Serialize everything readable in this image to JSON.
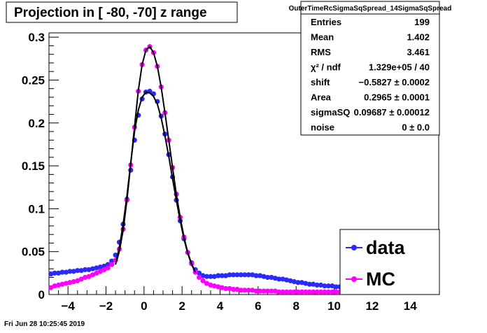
{
  "chart_data": {
    "type": "scatter",
    "title": "Projection in [ -80, -70] z range",
    "xlabel": "",
    "ylabel": "",
    "xlim": [
      -5,
      15.5
    ],
    "ylim": [
      0,
      0.305
    ],
    "x_ticks": [
      -4,
      -2,
      0,
      2,
      4,
      6,
      8,
      10,
      12,
      14
    ],
    "x_tick_labels": [
      "−4",
      "−2",
      "0",
      "2",
      "4",
      "6",
      "8",
      "10",
      "12",
      "14"
    ],
    "y_ticks": [
      0,
      0.05,
      0.1,
      0.15,
      0.2,
      0.25,
      0.3
    ],
    "y_tick_labels": [
      "0",
      "0.05",
      "0.1",
      "0.15",
      "0.2",
      "0.25",
      "0.3"
    ],
    "grid": false,
    "legend_position": "bottom-right",
    "series": [
      {
        "name": "data",
        "color": "#2a2aff",
        "marker": "circle",
        "x": [
          -4.9,
          -4.7,
          -4.5,
          -4.3,
          -4.1,
          -3.9,
          -3.7,
          -3.5,
          -3.3,
          -3.1,
          -2.9,
          -2.7,
          -2.5,
          -2.3,
          -2.1,
          -1.9,
          -1.7,
          -1.5,
          -1.3,
          -1.1,
          -0.9,
          -0.7,
          -0.5,
          -0.3,
          -0.1,
          0.1,
          0.3,
          0.5,
          0.7,
          0.9,
          1.1,
          1.3,
          1.5,
          1.7,
          1.9,
          2.1,
          2.3,
          2.5,
          2.7,
          2.9,
          3.1,
          3.3,
          3.5,
          3.7,
          3.9,
          4.1,
          4.3,
          4.5,
          4.7,
          4.9,
          5.1,
          5.3,
          5.5,
          5.7,
          5.9,
          6.1,
          6.3,
          6.5,
          6.7,
          6.9,
          7.1,
          7.3,
          7.5,
          7.7,
          7.9,
          8.1,
          8.3,
          8.5,
          8.7,
          8.9,
          9.1,
          9.3,
          9.5,
          9.7,
          9.9,
          10.1,
          10.3,
          10.5,
          10.7,
          10.9,
          11.1,
          11.3,
          11.5,
          11.7,
          11.9,
          12.1,
          12.3,
          12.5,
          12.7,
          12.9,
          13.1,
          13.3,
          13.5,
          13.7,
          13.9,
          14.1,
          14.3,
          14.5,
          14.7,
          14.9,
          15.1,
          15.3
        ],
        "y": [
          0.024,
          0.025,
          0.025,
          0.026,
          0.026,
          0.027,
          0.027,
          0.028,
          0.028,
          0.029,
          0.029,
          0.03,
          0.031,
          0.032,
          0.033,
          0.035,
          0.039,
          0.046,
          0.061,
          0.082,
          0.111,
          0.145,
          0.18,
          0.209,
          0.228,
          0.236,
          0.237,
          0.234,
          0.225,
          0.208,
          0.187,
          0.163,
          0.137,
          0.11,
          0.086,
          0.065,
          0.049,
          0.037,
          0.029,
          0.025,
          0.022,
          0.021,
          0.021,
          0.021,
          0.022,
          0.022,
          0.022,
          0.023,
          0.023,
          0.023,
          0.023,
          0.023,
          0.023,
          0.023,
          0.022,
          0.022,
          0.021,
          0.02,
          0.02,
          0.019,
          0.018,
          0.018,
          0.017,
          0.016,
          0.015,
          0.014,
          0.014,
          0.013,
          0.012,
          0.012,
          0.011,
          0.011,
          0.01,
          0.01,
          0.01,
          0.009,
          0.009,
          0.009,
          0.009,
          0.008,
          0.008,
          0.008,
          0.008,
          0.008,
          0.008,
          0.008,
          0.007,
          0.007,
          0.007,
          0.007,
          0.007,
          0.007,
          0.007,
          0.007,
          0.007,
          0.007,
          0.007,
          0.007,
          0.006,
          0.006,
          0.006,
          0.006
        ]
      },
      {
        "name": "MC",
        "color": "#ff00ff",
        "marker": "circle",
        "x": [
          -4.9,
          -4.7,
          -4.5,
          -4.3,
          -4.1,
          -3.9,
          -3.7,
          -3.5,
          -3.3,
          -3.1,
          -2.9,
          -2.7,
          -2.5,
          -2.3,
          -2.1,
          -1.9,
          -1.7,
          -1.5,
          -1.3,
          -1.1,
          -0.9,
          -0.7,
          -0.5,
          -0.3,
          -0.1,
          0.1,
          0.3,
          0.5,
          0.7,
          0.9,
          1.1,
          1.3,
          1.5,
          1.7,
          1.9,
          2.1,
          2.3,
          2.5,
          2.7,
          2.9,
          3.1,
          3.3,
          3.5,
          3.7,
          3.9,
          4.1,
          4.3,
          4.5,
          4.7,
          4.9,
          5.1,
          5.3,
          5.5,
          5.7,
          5.9,
          6.1,
          6.3,
          6.5,
          6.7,
          6.9,
          7.1,
          7.3,
          7.5,
          7.7,
          7.9,
          8.1,
          8.3,
          8.5,
          8.7,
          8.9,
          9.1,
          9.3,
          9.5,
          9.7,
          9.9,
          10.1,
          10.3,
          10.5,
          10.7,
          10.9,
          11.1,
          11.3,
          11.5,
          11.7,
          11.9,
          12.1,
          12.3,
          12.5,
          12.7,
          12.9,
          13.1,
          13.3,
          13.5,
          13.7,
          13.9,
          14.1,
          14.3,
          14.5,
          14.7,
          14.9,
          15.1,
          15.3
        ],
        "y": [
          0.008,
          0.01,
          0.011,
          0.012,
          0.013,
          0.014,
          0.015,
          0.016,
          0.018,
          0.02,
          0.021,
          0.023,
          0.025,
          0.027,
          0.029,
          0.031,
          0.035,
          0.04,
          0.053,
          0.076,
          0.11,
          0.151,
          0.195,
          0.237,
          0.268,
          0.285,
          0.289,
          0.282,
          0.266,
          0.242,
          0.212,
          0.18,
          0.148,
          0.117,
          0.09,
          0.067,
          0.049,
          0.036,
          0.026,
          0.02,
          0.016,
          0.013,
          0.011,
          0.01,
          0.009,
          0.008,
          0.007,
          0.007,
          0.006,
          0.006,
          0.005,
          0.005,
          0.005,
          0.005,
          0.004,
          0.004,
          0.004,
          0.004,
          0.004,
          0.004,
          0.003,
          0.003,
          0.003,
          0.003,
          0.003,
          0.003,
          0.003,
          0.003,
          0.003,
          0.003,
          0.003,
          0.003,
          0.003,
          0.003,
          0.003,
          0.003,
          0.003,
          0.003,
          0.003,
          0.003,
          0.003,
          0.003,
          0.003,
          0.003,
          0.003,
          0.003,
          0.003,
          0.003,
          0.003,
          0.003,
          0.003,
          0.003,
          0.003,
          0.003,
          0.003,
          0.003,
          0.003,
          0.003,
          0.003,
          0.003,
          0.003,
          0.003
        ]
      }
    ],
    "fit_curves": [
      {
        "color": "#000000",
        "x": [
          -1.5,
          -1.3,
          -1.1,
          -0.9,
          -0.7,
          -0.5,
          -0.3,
          -0.1,
          0.1,
          0.3,
          0.5,
          0.7,
          0.9,
          1.1,
          1.3,
          1.5,
          1.7,
          1.9,
          2.1,
          2.3,
          2.5,
          2.7
        ],
        "y": [
          0.035,
          0.055,
          0.082,
          0.115,
          0.153,
          0.19,
          0.215,
          0.23,
          0.236,
          0.235,
          0.231,
          0.222,
          0.206,
          0.185,
          0.161,
          0.135,
          0.11,
          0.086,
          0.065,
          0.048,
          0.035,
          0.026
        ]
      },
      {
        "color": "#000000",
        "x": [
          -1.5,
          -1.3,
          -1.1,
          -0.9,
          -0.7,
          -0.5,
          -0.3,
          -0.1,
          0.1,
          0.3,
          0.5,
          0.7,
          0.9,
          1.1,
          1.3,
          1.5,
          1.7,
          1.9,
          2.1,
          2.3,
          2.5,
          2.7
        ],
        "y": [
          0.035,
          0.05,
          0.075,
          0.11,
          0.152,
          0.196,
          0.238,
          0.268,
          0.285,
          0.289,
          0.282,
          0.266,
          0.242,
          0.212,
          0.18,
          0.148,
          0.117,
          0.09,
          0.067,
          0.049,
          0.036,
          0.026
        ]
      }
    ],
    "stats_box": {
      "title": "OuterTimeRcSigmaSqSpread_14SigmaSqSpread",
      "rows": [
        {
          "key": "Entries",
          "value": "199"
        },
        {
          "key": "Mean",
          "value": "1.402"
        },
        {
          "key": "RMS",
          "value": "3.461"
        },
        {
          "key": "χ² / ndf",
          "value": "1.329e+05 / 40"
        },
        {
          "key": "shift",
          "value": "−0.5827 ± 0.0002"
        },
        {
          "key": "Area",
          "value": "0.2965 ± 0.0001"
        },
        {
          "key": "sigmaSQ",
          "value": "0.09687 ± 0.00012"
        },
        {
          "key": "noise",
          "value": "0 ± 0.0"
        }
      ]
    },
    "legend": [
      {
        "label": "data",
        "color": "#2a2aff"
      },
      {
        "label": "MC",
        "color": "#ff00ff"
      }
    ]
  },
  "footer": {
    "timestamp": "Fri Jun 28 10:25:45 2019"
  }
}
